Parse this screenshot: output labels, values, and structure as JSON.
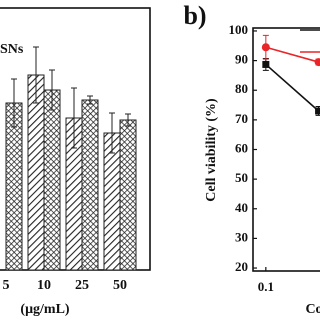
{
  "chart_data": [
    {
      "type": "bar",
      "x_label": "(μg/mL)",
      "categories": [
        "5",
        "10",
        "25",
        "50"
      ],
      "series": [
        {
          "name": "SNs",
          "color": "#222222",
          "values": [
            null,
            97.5,
            76,
            68.5
          ],
          "errors": [
            null,
            14,
            15,
            10
          ]
        },
        {
          "color": "#222222",
          "values": [
            83.5,
            90,
            85,
            75
          ],
          "errors": [
            12,
            10,
            2,
            3
          ]
        }
      ],
      "ylim": [
        0,
        135
      ]
    },
    {
      "type": "line",
      "title": "b)",
      "y_label": "Cell viability (%)",
      "x_label": "Co",
      "x": [
        0.1,
        0.25
      ],
      "xlim": [
        0.08,
        0.27
      ],
      "xticks": [
        0.1
      ],
      "log_x": true,
      "series": [
        {
          "color": "#111111",
          "values": [
            88.7,
            73
          ],
          "errors": [
            2,
            1.5
          ]
        },
        {
          "color": "#e8262a",
          "values": [
            94.5,
            89.5
          ],
          "errors": [
            4,
            1
          ]
        }
      ],
      "ylim": [
        19,
        101
      ],
      "yticks": [
        20,
        30,
        40,
        50,
        60,
        70,
        80,
        90,
        100
      ]
    }
  ]
}
